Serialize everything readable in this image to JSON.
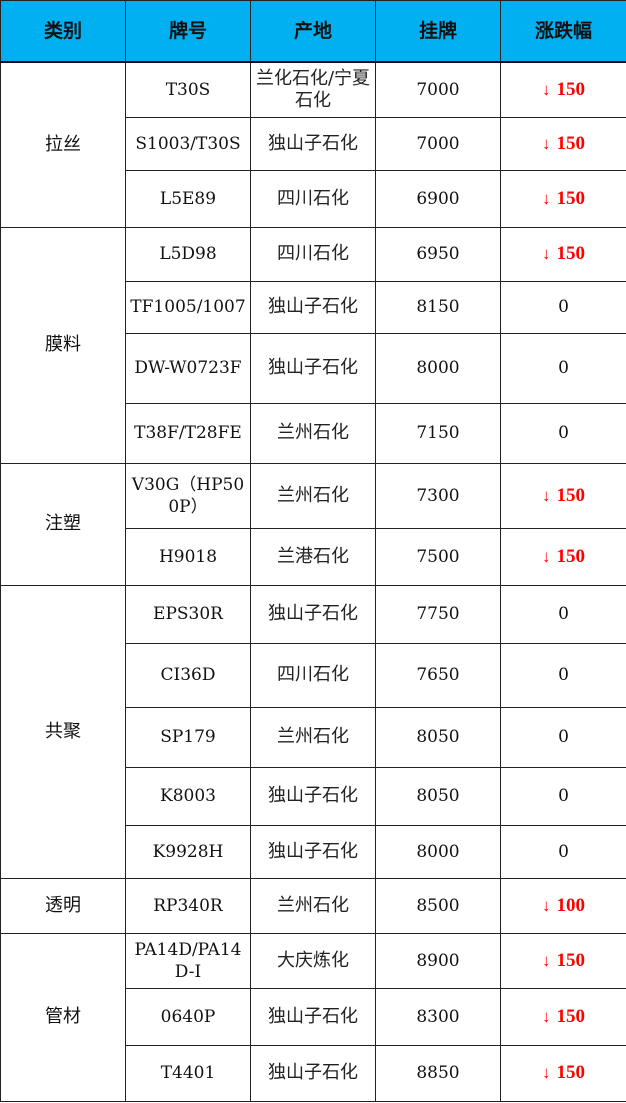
{
  "header": [
    "类别",
    "牌号",
    "产地",
    "挂牌",
    "涨跌幅"
  ],
  "down_color": "#ff0000",
  "header_color": "#00b0f0",
  "groups": [
    {
      "category": "拉丝",
      "rows": [
        {
          "grade": "T30S",
          "origin": "兰化石化/宁夏石化",
          "price": "7000",
          "change": "150",
          "direction": "down"
        },
        {
          "grade": "S1003/T30S",
          "origin": "独山子石化",
          "price": "7000",
          "change": "150",
          "direction": "down"
        },
        {
          "grade": "L5E89",
          "origin": "四川石化",
          "price": "6900",
          "change": "150",
          "direction": "down"
        }
      ]
    },
    {
      "category": "膜料",
      "rows": [
        {
          "grade": "L5D98",
          "origin": "四川石化",
          "price": "6950",
          "change": "150",
          "direction": "down"
        },
        {
          "grade": "TF1005/1007",
          "origin": "独山子石化",
          "price": "8150",
          "change": "0",
          "direction": "flat"
        },
        {
          "grade": "DW-W0723F",
          "origin": "独山子石化",
          "price": "8000",
          "change": "0",
          "direction": "flat"
        },
        {
          "grade": "T38F/T28FE",
          "origin": "兰州石化",
          "price": "7150",
          "change": "0",
          "direction": "flat"
        }
      ]
    },
    {
      "category": "注塑",
      "rows": [
        {
          "grade": "V30G（HP500P）",
          "origin": "兰州石化",
          "price": "7300",
          "change": "150",
          "direction": "down"
        },
        {
          "grade": "H9018",
          "origin": "兰港石化",
          "price": "7500",
          "change": "150",
          "direction": "down"
        }
      ]
    },
    {
      "category": "共聚",
      "rows": [
        {
          "grade": "EPS30R",
          "origin": "独山子石化",
          "price": "7750",
          "change": "0",
          "direction": "flat"
        },
        {
          "grade": "CI36D",
          "origin": "四川石化",
          "price": "7650",
          "change": "0",
          "direction": "flat"
        },
        {
          "grade": "SP179",
          "origin": "兰州石化",
          "price": "8050",
          "change": "0",
          "direction": "flat"
        },
        {
          "grade": "K8003",
          "origin": "独山子石化",
          "price": "8050",
          "change": "0",
          "direction": "flat"
        },
        {
          "grade": "K9928H",
          "origin": "独山子石化",
          "price": "8000",
          "change": "0",
          "direction": "flat"
        }
      ]
    },
    {
      "category": "透明",
      "rows": [
        {
          "grade": "RP340R",
          "origin": "兰州石化",
          "price": "8500",
          "change": "100",
          "direction": "down"
        }
      ]
    },
    {
      "category": "管材",
      "rows": [
        {
          "grade": "PA14D/PA14D-I",
          "origin": "大庆炼化",
          "price": "8900",
          "change": "150",
          "direction": "down"
        },
        {
          "grade": "0640P",
          "origin": "独山子石化",
          "price": "8300",
          "change": "150",
          "direction": "down"
        },
        {
          "grade": "T4401",
          "origin": "独山子石化",
          "price": "8850",
          "change": "150",
          "direction": "down"
        }
      ]
    }
  ]
}
